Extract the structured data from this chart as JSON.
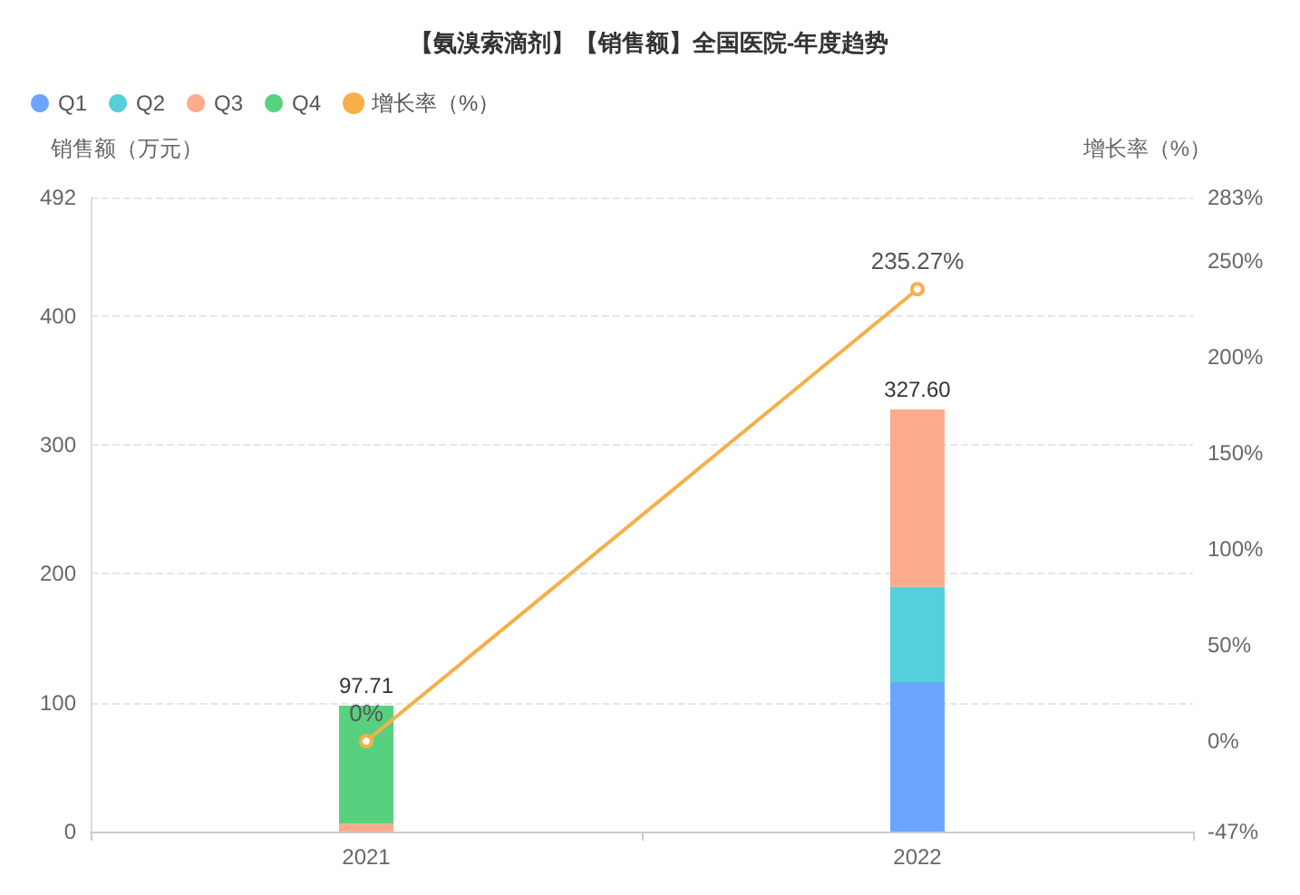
{
  "chart_data": {
    "type": "bar",
    "title": "【氨溴索滴剂】【销售额】全国医院-年度趋势",
    "categories": [
      "2021",
      "2022"
    ],
    "series": [
      {
        "name": "Q1",
        "color": "#6aa6ff",
        "values": [
          null,
          116
        ]
      },
      {
        "name": "Q2",
        "color": "#56cfdc",
        "values": [
          null,
          74
        ]
      },
      {
        "name": "Q3",
        "color": "#fdab8d",
        "values": [
          6,
          137.6
        ]
      },
      {
        "name": "Q4",
        "color": "#58d17e",
        "values": [
          91.71,
          null
        ]
      },
      {
        "name": "增长率（%）",
        "type": "line",
        "axis": "y2",
        "color": "#f5b04a",
        "values": [
          0,
          235.27
        ],
        "value_labels": [
          "0%",
          "235.27%"
        ],
        "marker": "circle",
        "line_style": "solid"
      }
    ],
    "stacked": true,
    "totals": [
      "97.71",
      "327.60"
    ],
    "ylabel": "销售额（万元）",
    "y2label": "增长率（%）",
    "ylim": [
      0,
      492
    ],
    "yticks": [
      0,
      100,
      200,
      300,
      400,
      492
    ],
    "y2lim": [
      -47,
      283
    ],
    "y2ticks": [
      {
        "value": -47,
        "label": "-47%"
      },
      {
        "value": 0,
        "label": "0%"
      },
      {
        "value": 50,
        "label": "50%"
      },
      {
        "value": 100,
        "label": "100%"
      },
      {
        "value": 150,
        "label": "150%"
      },
      {
        "value": 200,
        "label": "200%"
      },
      {
        "value": 250,
        "label": "250%"
      },
      {
        "value": 283,
        "label": "283%"
      }
    ],
    "grid": "y",
    "legend": "top left"
  }
}
